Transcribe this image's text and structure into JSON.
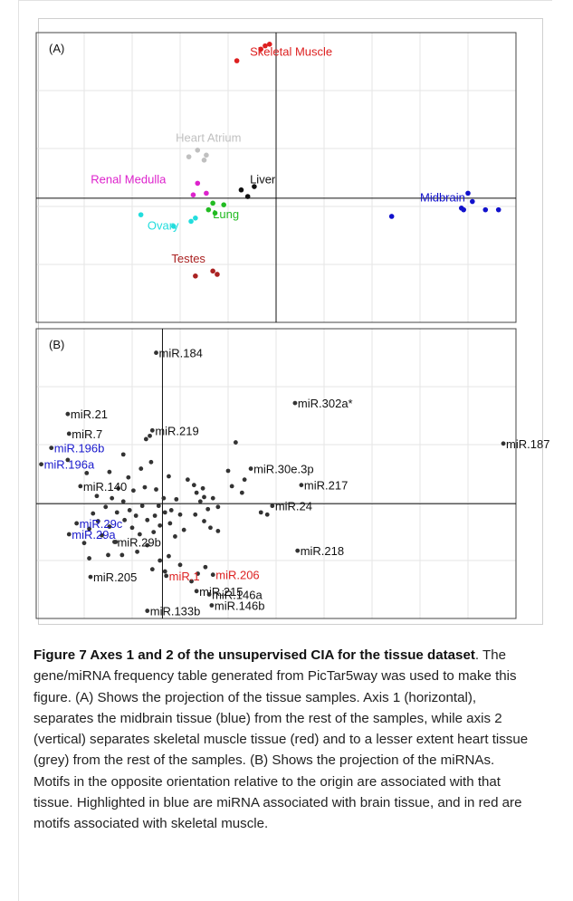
{
  "chart_data": [
    {
      "type": "scatter",
      "panel_label": "(A)",
      "xlim": [
        -1.1,
        1.1
      ],
      "ylim": [
        -0.75,
        1.0
      ],
      "grid": true,
      "groups": [
        {
          "name": "Skeletal Muscle",
          "color": "#dd2020",
          "label_pos": [
            -0.12,
            0.86
          ],
          "points": [
            [
              -0.05,
              0.92
            ],
            [
              -0.03,
              0.93
            ],
            [
              -0.07,
              0.9
            ],
            [
              -0.18,
              0.83
            ]
          ]
        },
        {
          "name": "Heart Atrium",
          "color": "#c0c0c0",
          "label_pos": [
            -0.46,
            0.34
          ],
          "points": [
            [
              -0.36,
              0.29
            ],
            [
              -0.4,
              0.25
            ],
            [
              -0.32,
              0.26
            ],
            [
              -0.33,
              0.23
            ]
          ]
        },
        {
          "name": "Renal Medulla",
          "color": "#dd22cc",
          "label_pos": [
            -0.85,
            0.09
          ],
          "points": [
            [
              -0.36,
              0.09
            ],
            [
              -0.38,
              0.02
            ],
            [
              -0.32,
              0.03
            ]
          ]
        },
        {
          "name": "Liver",
          "color": "#111111",
          "label_pos": [
            -0.12,
            0.09
          ],
          "points": [
            [
              -0.1,
              0.07
            ],
            [
              -0.16,
              0.05
            ],
            [
              -0.13,
              0.01
            ]
          ]
        },
        {
          "name": "Lung",
          "color": "#22bb22",
          "label_pos": [
            -0.29,
            -0.12
          ],
          "points": [
            [
              -0.29,
              -0.03
            ],
            [
              -0.24,
              -0.04
            ],
            [
              -0.31,
              -0.07
            ],
            [
              -0.28,
              -0.09
            ]
          ]
        },
        {
          "name": "Ovary",
          "color": "#22dddd",
          "label_pos": [
            -0.59,
            -0.19
          ],
          "points": [
            [
              -0.62,
              -0.1
            ],
            [
              -0.47,
              -0.17
            ],
            [
              -0.37,
              -0.12
            ],
            [
              -0.39,
              -0.14
            ]
          ]
        },
        {
          "name": "Midbrain",
          "color": "#1111cc",
          "label_pos": [
            0.66,
            -0.02
          ],
          "points": [
            [
              0.88,
              0.03
            ],
            [
              0.9,
              -0.02
            ],
            [
              0.85,
              -0.06
            ],
            [
              0.86,
              -0.07
            ],
            [
              0.96,
              -0.07
            ],
            [
              1.02,
              -0.07
            ],
            [
              0.53,
              -0.11
            ]
          ]
        },
        {
          "name": "Testes",
          "color": "#aa2222",
          "label_pos": [
            -0.48,
            -0.39
          ],
          "points": [
            [
              -0.29,
              -0.44
            ],
            [
              -0.27,
              -0.46
            ],
            [
              -0.37,
              -0.47
            ]
          ]
        }
      ]
    },
    {
      "type": "scatter",
      "panel_label": "(B)",
      "xlim": [
        -1.0,
        2.8
      ],
      "ylim": [
        -1.05,
        1.6
      ],
      "grid": true,
      "labeled_points": [
        {
          "label": "miR.184",
          "x": -0.05,
          "y": 1.38,
          "color": "#111111"
        },
        {
          "label": "miR.302a*",
          "x": 1.05,
          "y": 0.92,
          "color": "#111111"
        },
        {
          "label": "miR.187",
          "x": 2.7,
          "y": 0.55,
          "color": "#111111"
        },
        {
          "label": "miR.21",
          "x": -0.75,
          "y": 0.82,
          "color": "#111111"
        },
        {
          "label": "miR.7",
          "x": -0.74,
          "y": 0.64,
          "color": "#111111"
        },
        {
          "label": "miR.219",
          "x": -0.08,
          "y": 0.67,
          "color": "#111111"
        },
        {
          "label": "miR.196b",
          "x": -0.88,
          "y": 0.51,
          "color": "#1a1acc"
        },
        {
          "label": "miR.196a",
          "x": -0.96,
          "y": 0.36,
          "color": "#1a1acc"
        },
        {
          "label": "miR.30e.3p",
          "x": 0.7,
          "y": 0.32,
          "color": "#111111"
        },
        {
          "label": "miR.217",
          "x": 1.1,
          "y": 0.17,
          "color": "#111111"
        },
        {
          "label": "miR.140",
          "x": -0.65,
          "y": 0.16,
          "color": "#111111"
        },
        {
          "label": "miR.24",
          "x": 0.87,
          "y": -0.02,
          "color": "#111111"
        },
        {
          "label": "miR.29c",
          "x": -0.68,
          "y": -0.18,
          "color": "#1a1acc"
        },
        {
          "label": "miR.29a",
          "x": -0.74,
          "y": -0.28,
          "color": "#1a1acc"
        },
        {
          "label": "miR.218",
          "x": 1.07,
          "y": -0.43,
          "color": "#111111"
        },
        {
          "label": "miR.29b",
          "x": -0.38,
          "y": -0.35,
          "color": "#111111"
        },
        {
          "label": "miR.205",
          "x": -0.57,
          "y": -0.67,
          "color": "#111111"
        },
        {
          "label": "miR.1",
          "x": 0.03,
          "y": -0.66,
          "color": "#dd2222"
        },
        {
          "label": "miR.206",
          "x": 0.4,
          "y": -0.65,
          "color": "#dd2222"
        },
        {
          "label": "miR.215",
          "x": 0.27,
          "y": -0.8,
          "color": "#111111"
        },
        {
          "label": "miR.146a",
          "x": 0.37,
          "y": -0.83,
          "color": "#111111"
        },
        {
          "label": "miR.146b",
          "x": 0.39,
          "y": -0.93,
          "color": "#111111"
        },
        {
          "label": "miR.133b",
          "x": -0.12,
          "y": -0.98,
          "color": "#111111"
        }
      ],
      "points": [
        [
          0.2,
          0.22
        ],
        [
          0.25,
          0.17
        ],
        [
          0.32,
          0.14
        ],
        [
          0.27,
          0.1
        ],
        [
          0.33,
          0.06
        ],
        [
          0.3,
          0.02
        ],
        [
          0.4,
          0.05
        ],
        [
          0.36,
          -0.05
        ],
        [
          0.44,
          -0.03
        ],
        [
          0.26,
          -0.1
        ],
        [
          0.33,
          -0.16
        ],
        [
          0.38,
          -0.22
        ],
        [
          0.44,
          -0.25
        ],
        [
          0.11,
          0.04
        ],
        [
          0.07,
          -0.06
        ],
        [
          0.14,
          -0.1
        ],
        [
          0.06,
          -0.18
        ],
        [
          0.17,
          -0.24
        ],
        [
          0.1,
          -0.3
        ],
        [
          0.02,
          -0.08
        ],
        [
          -0.03,
          -0.02
        ],
        [
          -0.06,
          -0.11
        ],
        [
          -0.02,
          -0.2
        ],
        [
          -0.07,
          -0.26
        ],
        [
          -0.12,
          -0.15
        ],
        [
          -0.16,
          -0.02
        ],
        [
          -0.21,
          -0.11
        ],
        [
          -0.18,
          -0.28
        ],
        [
          -0.24,
          -0.22
        ],
        [
          -0.12,
          -0.38
        ],
        [
          -0.2,
          -0.44
        ],
        [
          -0.26,
          -0.06
        ],
        [
          -0.31,
          0.02
        ],
        [
          -0.36,
          -0.08
        ],
        [
          -0.4,
          0.05
        ],
        [
          -0.45,
          -0.03
        ],
        [
          -0.3,
          -0.15
        ],
        [
          -0.42,
          -0.21
        ],
        [
          -0.51,
          -0.16
        ],
        [
          -0.48,
          -0.29
        ],
        [
          -0.37,
          -0.35
        ],
        [
          -0.32,
          -0.47
        ],
        [
          -0.43,
          -0.47
        ],
        [
          -0.58,
          -0.23
        ],
        [
          -0.55,
          -0.09
        ],
        [
          -0.62,
          -0.36
        ],
        [
          -0.58,
          -0.5
        ],
        [
          -0.52,
          0.07
        ],
        [
          -0.31,
          0.45
        ],
        [
          -0.42,
          0.29
        ],
        [
          -0.27,
          0.24
        ],
        [
          -0.17,
          0.32
        ],
        [
          -0.09,
          0.38
        ],
        [
          -0.14,
          0.15
        ],
        [
          -0.23,
          0.12
        ],
        [
          -0.35,
          0.14
        ],
        [
          -0.05,
          0.13
        ],
        [
          0.01,
          0.05
        ],
        [
          0.05,
          0.25
        ],
        [
          -0.6,
          0.28
        ],
        [
          -0.75,
          0.4
        ],
        [
          -0.13,
          0.59
        ],
        [
          -0.1,
          0.62
        ],
        [
          0.58,
          0.56
        ],
        [
          0.65,
          0.22
        ],
        [
          0.55,
          0.16
        ],
        [
          0.52,
          0.3
        ],
        [
          0.63,
          0.1
        ],
        [
          0.78,
          -0.08
        ],
        [
          0.83,
          -0.1
        ],
        [
          -0.02,
          -0.52
        ],
        [
          0.05,
          -0.48
        ],
        [
          0.14,
          -0.56
        ],
        [
          0.02,
          -0.62
        ],
        [
          -0.08,
          -0.6
        ],
        [
          0.23,
          -0.71
        ],
        [
          0.28,
          -0.64
        ],
        [
          0.34,
          -0.58
        ]
      ]
    }
  ],
  "caption": {
    "bold": "Figure 7 Axes 1 and 2 of the unsupervised CIA for the tissue dataset",
    "text": ". The gene/miRNA frequency table generated from PicTar5way was used to make this figure. (A) Shows the projection of the tissue samples. Axis 1 (horizontal), separates the midbrain tissue (blue) from the rest of the samples, while axis 2 (vertical) separates skeletal muscle tissue (red) and to a lesser extent heart tissue (grey) from the rest of the samples. (B) Shows the projection of the miRNAs. Motifs in the opposite orientation relative to the origin are associated with that tissue. Highlighted in blue are miRNA associated with brain tissue, and in red are motifs associated with skeletal muscle."
  }
}
